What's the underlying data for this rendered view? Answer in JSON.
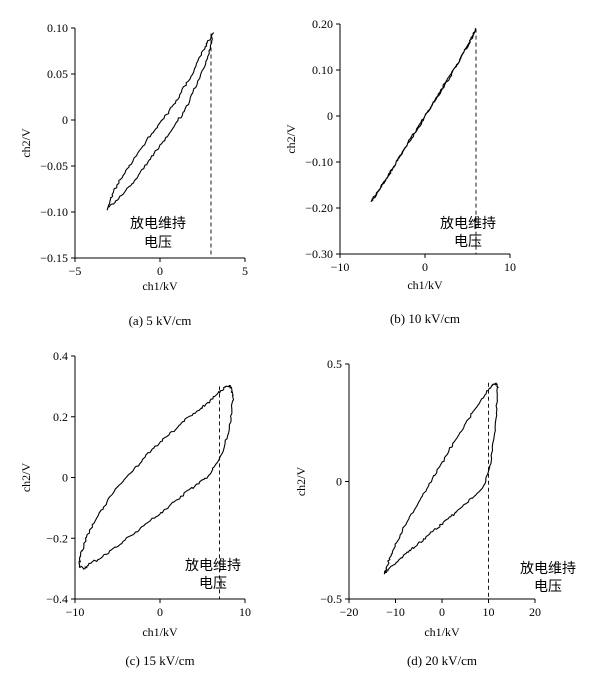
{
  "chart_data": [
    {
      "type": "line",
      "caption": "(a) 5 kV/cm",
      "xlabel": "ch1/kV",
      "ylabel": "ch2/V",
      "xlim": [
        -5,
        5
      ],
      "ylim": [
        -0.15,
        0.1
      ],
      "xticks": [
        -5,
        0,
        5
      ],
      "xtick_labels": [
        "−5",
        "0",
        "5"
      ],
      "yticks": [
        -0.15,
        -0.1,
        -0.05,
        0,
        0.05,
        0.1
      ],
      "ytick_labels": [
        "−0.15",
        "−0.10",
        "−0.05",
        "0",
        "0.05",
        "0.10"
      ],
      "annotation": [
        "放电维持",
        "电压"
      ],
      "sustain_x": 3.0,
      "series": [
        {
          "x": [
            -3.1,
            -2.4,
            -1.6,
            -0.8,
            0.0,
            0.8,
            1.6,
            2.3,
            2.9,
            3.1,
            2.6,
            1.9,
            1.1,
            0.3,
            -0.5,
            -1.3,
            -2.1,
            -2.8,
            -3.1
          ],
          "y": [
            -0.096,
            -0.085,
            -0.068,
            -0.048,
            -0.028,
            -0.008,
            0.015,
            0.045,
            0.072,
            0.094,
            0.078,
            0.05,
            0.025,
            0.004,
            -0.016,
            -0.036,
            -0.058,
            -0.08,
            -0.098
          ]
        }
      ],
      "grid": false
    },
    {
      "type": "line",
      "caption": "(b) 10 kV/cm",
      "xlabel": "ch1/kV",
      "ylabel": "ch2/V",
      "xlim": [
        -10,
        10
      ],
      "ylim": [
        -0.3,
        0.2
      ],
      "xticks": [
        -10,
        0,
        10
      ],
      "xtick_labels": [
        "−10",
        "0",
        "10"
      ],
      "yticks": [
        -0.3,
        -0.2,
        -0.1,
        0,
        0.1,
        0.2
      ],
      "ytick_labels": [
        "−0.30",
        "−0.20",
        "−0.10",
        "0",
        "0.10",
        "0.20"
      ],
      "annotation": [
        "放电维持",
        "电压"
      ],
      "sustain_x": 6.0,
      "series": [
        {
          "x": [
            -6.3,
            -5.0,
            -3.5,
            -2.0,
            -0.5,
            1.0,
            2.5,
            4.0,
            5.2,
            6.0,
            5.5,
            4.2,
            2.8,
            1.3,
            -0.2,
            -1.7,
            -3.2,
            -4.7,
            -5.9,
            -6.3
          ],
          "y": [
            -0.185,
            -0.15,
            -0.105,
            -0.06,
            -0.018,
            0.03,
            0.075,
            0.12,
            0.16,
            0.19,
            0.17,
            0.125,
            0.08,
            0.035,
            -0.005,
            -0.05,
            -0.095,
            -0.14,
            -0.175,
            -0.185
          ]
        }
      ],
      "grid": false
    },
    {
      "type": "line",
      "caption": "(c) 15 kV/cm",
      "xlabel": "ch1/kV",
      "ylabel": "ch2/V",
      "xlim": [
        -10,
        10
      ],
      "ylim": [
        -0.4,
        0.4
      ],
      "xticks": [
        -10,
        0,
        10
      ],
      "xtick_labels": [
        "−10",
        "0",
        "10"
      ],
      "yticks": [
        -0.4,
        -0.2,
        0,
        0.2,
        0.4
      ],
      "ytick_labels": [
        "−0.4",
        "−0.2",
        "0",
        "0.2",
        "0.4"
      ],
      "annotation": [
        "放电维持",
        "电压"
      ],
      "sustain_x": 7.0,
      "series": [
        {
          "x": [
            -8.5,
            -6.5,
            -4.5,
            -2.5,
            -0.5,
            1.5,
            3.5,
            5.5,
            7.0,
            8.2,
            8.6,
            8.3,
            7.5,
            6.5,
            5.0,
            3.0,
            1.0,
            -1.0,
            -3.0,
            -5.0,
            -7.0,
            -8.5,
            -9.3,
            -9.5,
            -9.0,
            -8.5
          ],
          "y": [
            -0.29,
            -0.255,
            -0.215,
            -0.17,
            -0.13,
            -0.085,
            -0.04,
            0.0,
            0.06,
            0.16,
            0.27,
            0.3,
            0.295,
            0.27,
            0.23,
            0.19,
            0.14,
            0.09,
            0.03,
            -0.03,
            -0.11,
            -0.19,
            -0.25,
            -0.29,
            -0.3,
            -0.29
          ]
        }
      ],
      "grid": false
    },
    {
      "type": "line",
      "caption": "(d) 20 kV/cm",
      "xlabel": "ch1/kV",
      "ylabel": "ch2/V",
      "xlim": [
        -20,
        20
      ],
      "ylim": [
        -0.5,
        0.5
      ],
      "xticks": [
        -20,
        -10,
        0,
        10,
        20
      ],
      "xtick_labels": [
        "−20",
        "−10",
        "0",
        "10",
        "20"
      ],
      "yticks": [
        -0.5,
        0,
        0.5
      ],
      "ytick_labels": [
        "−0.5",
        "0",
        "0.5"
      ],
      "annotation": [
        "放电维持",
        "电压"
      ],
      "sustain_x": 10.0,
      "series": [
        {
          "x": [
            -12.0,
            -9.0,
            -6.0,
            -3.0,
            0.0,
            3.0,
            6.0,
            9.0,
            10.5,
            11.5,
            12.0,
            11.5,
            10.0,
            7.5,
            4.5,
            1.5,
            -1.5,
            -4.5,
            -7.5,
            -10.0,
            -11.5,
            -12.3,
            -12.0
          ],
          "y": [
            -0.38,
            -0.33,
            -0.28,
            -0.23,
            -0.18,
            -0.13,
            -0.08,
            -0.02,
            0.08,
            0.25,
            0.4,
            0.42,
            0.39,
            0.32,
            0.23,
            0.13,
            0.03,
            -0.07,
            -0.17,
            -0.27,
            -0.34,
            -0.39,
            -0.38
          ]
        }
      ],
      "grid": false
    }
  ]
}
